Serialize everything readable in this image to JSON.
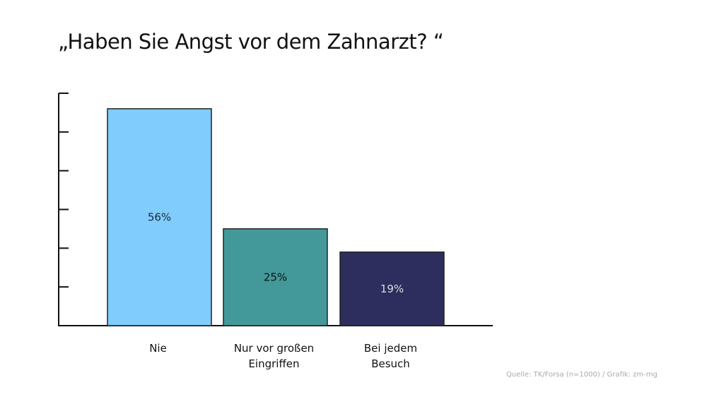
{
  "chart_data": {
    "type": "bar",
    "title": "„Haben Sie Angst vor dem Zahnarzt? “",
    "categories": [
      [
        "Nie"
      ],
      [
        "Nur vor großen",
        "Eingriffen"
      ],
      [
        "Bei jedem",
        "Besuch"
      ]
    ],
    "values": [
      56,
      25,
      19
    ],
    "value_labels": [
      "56%",
      "25%",
      "19%"
    ],
    "colors": [
      "#80ccfc",
      "#43999a",
      "#2d2d5e"
    ],
    "label_colors": [
      "#1a2a3a",
      "#111111",
      "#dddddd"
    ],
    "ylim": [
      0,
      60
    ],
    "yticks": [
      0,
      10,
      20,
      30,
      40,
      50,
      60
    ],
    "xlabel": "",
    "ylabel": "",
    "grid": false,
    "source": "Quelle: TK/Forsa (n=1000) / Grafik: zm-mg"
  }
}
